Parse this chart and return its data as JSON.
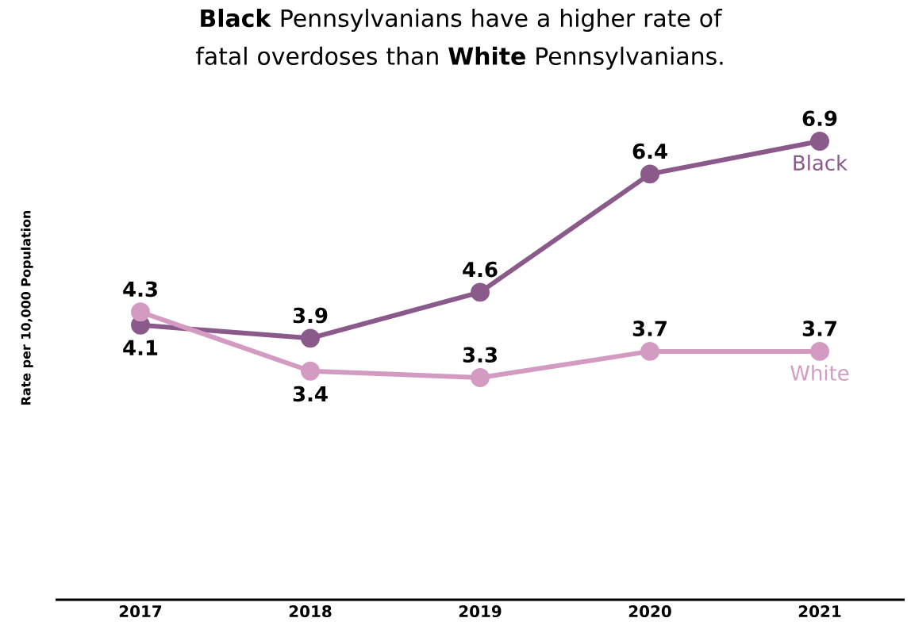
{
  "chart_data": {
    "type": "line",
    "title": "**Black** Pennsylvanians have a higher rate of fatal overdoses than **White** Pennsylvanians.",
    "ylabel": "Rate per 10,000 Population",
    "categories": [
      "2017",
      "2018",
      "2019",
      "2020",
      "2021"
    ],
    "series": [
      {
        "name": "Black",
        "color": "#8a5a8b",
        "values": [
          4.1,
          3.9,
          4.6,
          6.4,
          6.9
        ]
      },
      {
        "name": "White",
        "color": "#d49bc2",
        "values": [
          4.3,
          3.4,
          3.3,
          3.7,
          3.7
        ]
      }
    ],
    "tick_labels": "x",
    "data_labels": true,
    "marker": "circle",
    "line_style": "solid",
    "grid": false,
    "legend": false
  }
}
